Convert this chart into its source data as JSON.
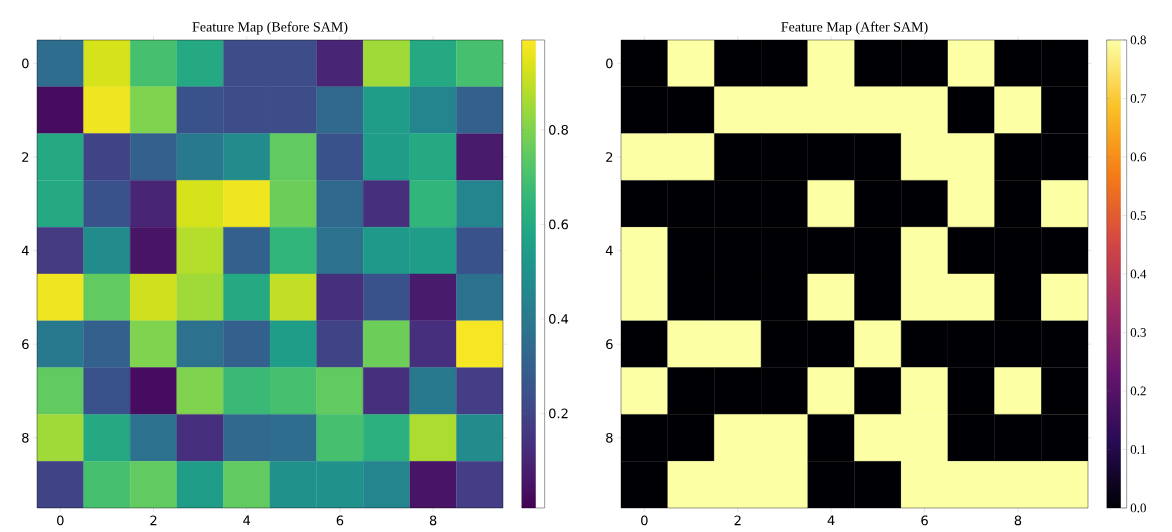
{
  "chart_data": [
    {
      "type": "heatmap",
      "title": "Feature Map (Before SAM)",
      "categories": [
        "0",
        null,
        "2",
        null,
        "4",
        null,
        "6",
        null,
        "8",
        null
      ],
      "y_categories": [
        "0",
        null,
        "2",
        null,
        "4",
        null,
        "6",
        null,
        "8",
        null
      ],
      "cells": [
        [
          0.35,
          0.93,
          0.7,
          0.6,
          0.23,
          0.23,
          0.1,
          0.85,
          0.6,
          0.7
        ],
        [
          0.03,
          0.97,
          0.8,
          0.25,
          0.23,
          0.23,
          0.33,
          0.55,
          0.45,
          0.3
        ],
        [
          0.6,
          0.2,
          0.3,
          0.4,
          0.48,
          0.75,
          0.25,
          0.55,
          0.6,
          0.07
        ],
        [
          0.6,
          0.25,
          0.1,
          0.93,
          0.97,
          0.77,
          0.33,
          0.13,
          0.65,
          0.45
        ],
        [
          0.17,
          0.48,
          0.05,
          0.88,
          0.3,
          0.65,
          0.37,
          0.53,
          0.55,
          0.25
        ],
        [
          0.97,
          0.75,
          0.92,
          0.85,
          0.6,
          0.9,
          0.13,
          0.25,
          0.07,
          0.37
        ],
        [
          0.4,
          0.3,
          0.8,
          0.37,
          0.3,
          0.55,
          0.2,
          0.77,
          0.13,
          0.98
        ],
        [
          0.75,
          0.25,
          0.03,
          0.8,
          0.67,
          0.7,
          0.75,
          0.13,
          0.4,
          0.18
        ],
        [
          0.85,
          0.6,
          0.37,
          0.13,
          0.33,
          0.35,
          0.7,
          0.63,
          0.87,
          0.48
        ],
        [
          0.2,
          0.7,
          0.75,
          0.55,
          0.75,
          0.5,
          0.5,
          0.45,
          0.05,
          0.18
        ]
      ],
      "clim": [
        0.0,
        0.99
      ],
      "cticks": [
        0.2,
        0.4,
        0.6,
        0.8
      ]
    },
    {
      "type": "heatmap",
      "title": "Feature Map (After SAM)",
      "categories": [
        "0",
        null,
        "2",
        null,
        "4",
        null,
        "6",
        null,
        "8",
        null
      ],
      "y_categories": [
        "0",
        null,
        "2",
        null,
        "4",
        null,
        "6",
        null,
        "8",
        null
      ],
      "cells": [
        [
          0,
          0.8,
          0,
          0,
          0.8,
          0,
          0,
          0.8,
          0,
          0
        ],
        [
          0,
          0,
          0.8,
          0.8,
          0.8,
          0.8,
          0.8,
          0,
          0.8,
          0
        ],
        [
          0.8,
          0.8,
          0,
          0,
          0,
          0,
          0.8,
          0.8,
          0,
          0
        ],
        [
          0,
          0,
          0,
          0,
          0.8,
          0,
          0,
          0.8,
          0,
          0.8
        ],
        [
          0.8,
          0,
          0,
          0,
          0,
          0,
          0.8,
          0,
          0,
          0
        ],
        [
          0.8,
          0,
          0,
          0,
          0.8,
          0,
          0.8,
          0.8,
          0,
          0.8
        ],
        [
          0,
          0.8,
          0.8,
          0,
          0,
          0.8,
          0,
          0,
          0,
          0
        ],
        [
          0.8,
          0,
          0,
          0,
          0.8,
          0,
          0.8,
          0,
          0.8,
          0
        ],
        [
          0,
          0,
          0.8,
          0.8,
          0,
          0.8,
          0.8,
          0,
          0,
          0
        ],
        [
          0,
          0.8,
          0.8,
          0.8,
          0,
          0,
          0.8,
          0.8,
          0.8,
          0.8
        ]
      ],
      "clim": [
        0.0,
        0.8
      ],
      "cticks": [
        {
          "value": 0,
          "label": "0.0"
        },
        0.1,
        0.2,
        0.3,
        0.4,
        0.5,
        0.6,
        0.7,
        0.8
      ]
    }
  ]
}
